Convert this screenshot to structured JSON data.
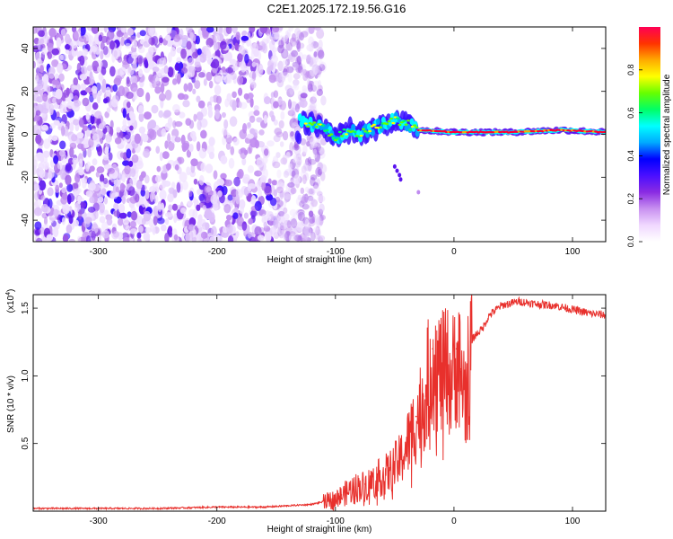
{
  "title": "C2E1.2025.172.19.56.G16",
  "colors": {
    "snr_line": "#e8302c",
    "axis": "#000000",
    "colormap": [
      "#ffffff",
      "#f0d8ff",
      "#c890f0",
      "#8a2be2",
      "#4a0fff",
      "#0000ff",
      "#00aaff",
      "#00ffff",
      "#00ff66",
      "#66ff00",
      "#ffff00",
      "#ffaa00",
      "#ff3300",
      "#ff0055"
    ]
  },
  "chart_data": [
    {
      "type": "heatmap",
      "title": "C2E1.2025.172.19.56.G16",
      "xlabel": "Height of straight line (km)",
      "ylabel": "Frequency (Hz)",
      "xlim": [
        -355,
        128
      ],
      "ylim": [
        -50,
        50
      ],
      "xticks": [
        -300,
        -200,
        -100,
        0,
        100
      ],
      "xtick_labels": [
        "-300",
        "-200",
        "-100",
        "0",
        "100"
      ],
      "yticks": [
        -40,
        -20,
        0,
        20,
        40
      ],
      "ytick_labels": [
        "-40",
        "-20",
        "0",
        "20",
        "40"
      ],
      "colorbar": {
        "label": "Normalized spectral amplitude",
        "range": [
          0,
          1
        ],
        "ticks": [
          0.0,
          0.2,
          0.4,
          0.6,
          0.8
        ],
        "tick_labels": [
          "0.0",
          "0.2",
          "0.4",
          "0.6",
          "0.8"
        ]
      },
      "features": {
        "noise_region_x": [
          -355,
          -120
        ],
        "noise_amplitude": "low (0.0-0.15)",
        "signal_ridge": [
          {
            "x": -130,
            "f": 6
          },
          {
            "x": -110,
            "f": 3
          },
          {
            "x": -100,
            "f": -2
          },
          {
            "x": -90,
            "f": 2
          },
          {
            "x": -80,
            "f": 0
          },
          {
            "x": -70,
            "f": 3
          },
          {
            "x": -60,
            "f": 4
          },
          {
            "x": -50,
            "f": 7
          },
          {
            "x": -40,
            "f": 5
          },
          {
            "x": -30,
            "f": 2
          },
          {
            "x": 0,
            "f": 1
          },
          {
            "x": 50,
            "f": 1
          },
          {
            "x": 90,
            "f": 2
          },
          {
            "x": 128,
            "f": 1
          }
        ],
        "ridge_amplitude": "high (0.6-1.0) for x > -30"
      }
    },
    {
      "type": "line",
      "xlabel": "Height of straight line (km)",
      "ylabel": "SNR (10 * v/v)",
      "scale_label": "(x10",
      "scale_exponent": "4",
      "xlim": [
        -355,
        128
      ],
      "ylim": [
        0,
        1.6
      ],
      "xticks": [
        -300,
        -200,
        -100,
        0,
        100
      ],
      "xtick_labels": [
        "-300",
        "-200",
        "-100",
        "0",
        "100"
      ],
      "yticks": [
        0.5,
        1.0,
        1.5
      ],
      "ytick_labels": [
        "0.5",
        "1.0",
        "1.5"
      ],
      "x": [
        -355,
        -300,
        -250,
        -200,
        -160,
        -140,
        -120,
        -105,
        -95,
        -85,
        -75,
        -65,
        -55,
        -45,
        -38,
        -32,
        -26,
        -22,
        -18,
        -14,
        -10,
        -6,
        -2,
        2,
        6,
        10,
        14,
        18,
        24,
        30,
        40,
        55,
        70,
        85,
        95,
        105,
        115,
        128
      ],
      "values": [
        0.02,
        0.02,
        0.02,
        0.03,
        0.03,
        0.04,
        0.05,
        0.08,
        0.12,
        0.18,
        0.2,
        0.25,
        0.3,
        0.4,
        0.55,
        0.7,
        0.85,
        1.0,
        1.2,
        1.1,
        1.05,
        1.1,
        1.0,
        1.2,
        1.05,
        0.9,
        1.25,
        1.3,
        1.35,
        1.45,
        1.52,
        1.55,
        1.53,
        1.52,
        1.5,
        1.48,
        1.46,
        1.45
      ]
    }
  ]
}
